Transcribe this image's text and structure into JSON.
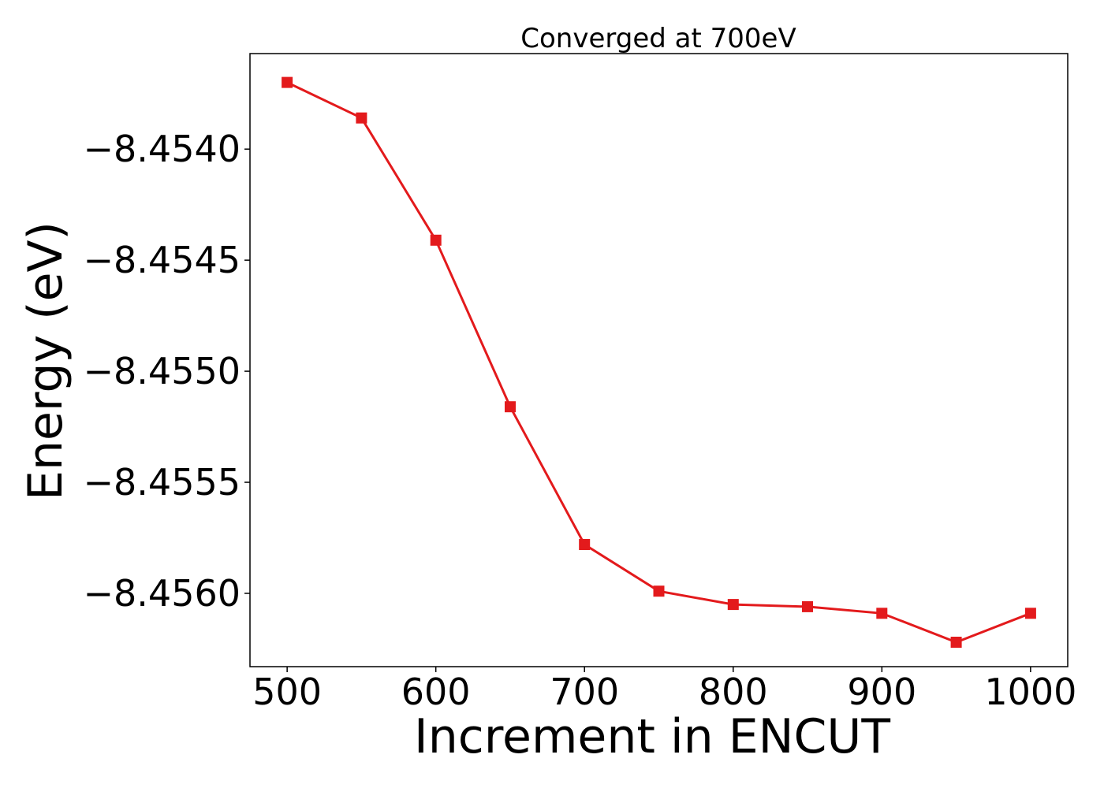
{
  "chart_data": {
    "type": "line",
    "title": "Converged at 700eV",
    "xlabel": "Increment in ENCUT",
    "ylabel": "Energy (eV)",
    "x": [
      500,
      550,
      600,
      650,
      700,
      750,
      800,
      850,
      900,
      950,
      1000
    ],
    "series": [
      {
        "values": [
          -8.4537,
          -8.45386,
          -8.45441,
          -8.45516,
          -8.45578,
          -8.45599,
          -8.45605,
          -8.45606,
          -8.45609,
          -8.45622,
          -8.45609
        ],
        "color": "#e31a1c",
        "marker": "square"
      }
    ],
    "xlim": [
      475,
      1025
    ],
    "ylim": [
      -8.45633,
      -8.45357
    ],
    "xticks": [
      500,
      600,
      700,
      800,
      900,
      1000
    ],
    "xtick_labels": [
      "500",
      "600",
      "700",
      "800",
      "900",
      "1000"
    ],
    "yticks": [
      -8.454,
      -8.4545,
      -8.455,
      -8.4555,
      -8.456
    ],
    "ytick_labels": [
      "−8.4540",
      "−8.4545",
      "−8.4550",
      "−8.4555",
      "−8.4560"
    ],
    "grid": false,
    "legend": "none"
  }
}
